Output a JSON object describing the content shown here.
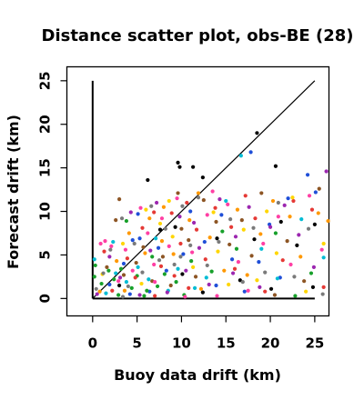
{
  "chart_data": {
    "type": "scatter",
    "title": "Distance scatter plot, obs-BE (28)",
    "xlabel": "Buoy data drift (km)",
    "ylabel": "Forecast drift (km)",
    "xlim": [
      -2.9,
      26.6
    ],
    "ylim": [
      -2.0,
      26.6
    ],
    "xticks": [
      0,
      5,
      10,
      15,
      20,
      25
    ],
    "yticks": [
      0,
      5,
      10,
      15,
      20,
      25
    ],
    "xtick_labels": [
      "0",
      "5",
      "10",
      "15",
      "20",
      "25"
    ],
    "ytick_labels": [
      "0",
      "5",
      "10",
      "15",
      "20",
      "25"
    ],
    "grid": false,
    "reference_line": {
      "from": [
        0,
        0
      ],
      "to": [
        25,
        25
      ],
      "color": "#000000"
    },
    "axis_lines": [
      {
        "from": [
          0,
          0
        ],
        "to": [
          0,
          25
        ],
        "color": "#000000"
      },
      {
        "from": [
          0,
          0
        ],
        "to": [
          25,
          0
        ],
        "color": "#000000"
      }
    ],
    "series": [
      {
        "color": "#000000",
        "points": [
          [
            6.2,
            13.6
          ],
          [
            9.6,
            15.6
          ],
          [
            9.8,
            15.1
          ],
          [
            11.3,
            15.1
          ],
          [
            12.4,
            13.9
          ],
          [
            20.6,
            15.2
          ],
          [
            18.5,
            19.0
          ],
          [
            7.6,
            7.9
          ],
          [
            14.0,
            6.9
          ],
          [
            16.6,
            2.1
          ],
          [
            18.2,
            6.8
          ],
          [
            21.2,
            8.8
          ],
          [
            23.0,
            6.1
          ],
          [
            25.0,
            8.5
          ],
          [
            24.8,
            1.3
          ],
          [
            12.4,
            0.7
          ],
          [
            10.1,
            2.8
          ],
          [
            3.0,
            1.5
          ],
          [
            9.3,
            8.2
          ],
          [
            20.1,
            1.1
          ]
        ]
      },
      {
        "color": "#1f4fd8",
        "points": [
          [
            1.9,
            1.6
          ],
          [
            4.5,
            6.7
          ],
          [
            5.3,
            6.9
          ],
          [
            5.1,
            9.7
          ],
          [
            7.4,
            5.8
          ],
          [
            8.3,
            3.2
          ],
          [
            11.0,
            10.0
          ],
          [
            12.6,
            6.5
          ],
          [
            14.5,
            9.6
          ],
          [
            15.7,
            4.5
          ],
          [
            17.1,
            0.8
          ],
          [
            18.7,
            4.2
          ],
          [
            19.9,
            8.5
          ],
          [
            22.0,
            11.5
          ],
          [
            24.2,
            14.2
          ],
          [
            25.1,
            12.2
          ],
          [
            21.1,
            2.4
          ],
          [
            17.8,
            16.8
          ],
          [
            13.9,
            1.5
          ],
          [
            4.2,
            0.5
          ],
          [
            6.4,
            0.8
          ],
          [
            10.2,
            5.1
          ],
          [
            3.5,
            4.0
          ]
        ]
      },
      {
        "color": "#00bcd4",
        "points": [
          [
            0.2,
            4.5
          ],
          [
            1.5,
            0.6
          ],
          [
            2.6,
            2.9
          ],
          [
            3.8,
            1.9
          ],
          [
            5.1,
            3.6
          ],
          [
            6.3,
            2.2
          ],
          [
            8.5,
            0.9
          ],
          [
            9.6,
            3.4
          ],
          [
            12.8,
            2.4
          ],
          [
            15.0,
            11.2
          ],
          [
            19.0,
            5.7
          ],
          [
            20.8,
            2.3
          ],
          [
            23.5,
            9.1
          ],
          [
            26.0,
            4.7
          ],
          [
            16.7,
            16.4
          ],
          [
            7.1,
            6.9
          ],
          [
            11.5,
            1.2
          ],
          [
            2.3,
            6.5
          ]
        ]
      },
      {
        "color": "#17a02a",
        "points": [
          [
            0.2,
            2.5
          ],
          [
            0.3,
            3.8
          ],
          [
            1.0,
            1.7
          ],
          [
            1.8,
            3.2
          ],
          [
            2.9,
            0.4
          ],
          [
            3.2,
            3.4
          ],
          [
            4.4,
            1.2
          ],
          [
            5.0,
            2.6
          ],
          [
            5.8,
            0.3
          ],
          [
            6.7,
            4.8
          ],
          [
            7.3,
            1.4
          ],
          [
            8.1,
            2.8
          ],
          [
            9.4,
            1.9
          ],
          [
            10.3,
            0.4
          ],
          [
            11.1,
            4.3
          ],
          [
            13.4,
            3.1
          ],
          [
            16.2,
            5.7
          ],
          [
            20.6,
            7.5
          ],
          [
            24.6,
            2.9
          ],
          [
            3.8,
            8.9
          ],
          [
            14.6,
            7.7
          ],
          [
            22.8,
            0.3
          ],
          [
            2.4,
            2.2
          ],
          [
            6.1,
            0.9
          ]
        ]
      },
      {
        "color": "#e53935",
        "points": [
          [
            1.3,
            5.4
          ],
          [
            2.2,
            0.9
          ],
          [
            3.9,
            4.6
          ],
          [
            5.6,
            8.1
          ],
          [
            6.9,
            9.9
          ],
          [
            7.7,
            3.7
          ],
          [
            8.9,
            9.8
          ],
          [
            9.9,
            6.3
          ],
          [
            10.6,
            11.0
          ],
          [
            11.7,
            7.9
          ],
          [
            12.7,
            4.5
          ],
          [
            13.8,
            10.4
          ],
          [
            15.6,
            8.2
          ],
          [
            17.2,
            11.8
          ],
          [
            18.3,
            9.2
          ],
          [
            19.4,
            0.8
          ],
          [
            21.4,
            4.4
          ],
          [
            22.6,
            11.2
          ],
          [
            24.7,
            10.2
          ],
          [
            26.0,
            1.3
          ],
          [
            4.8,
            2.4
          ],
          [
            7.0,
            0.3
          ],
          [
            10.8,
            1.2
          ],
          [
            16.0,
            3.4
          ],
          [
            9.2,
            2.6
          ]
        ]
      },
      {
        "color": "#ff9800",
        "points": [
          [
            0.8,
            0.8
          ],
          [
            2.7,
            4.3
          ],
          [
            4.1,
            7.5
          ],
          [
            5.9,
            5.2
          ],
          [
            6.4,
            9.2
          ],
          [
            8.0,
            10.5
          ],
          [
            9.1,
            5.1
          ],
          [
            10.9,
            9.0
          ],
          [
            12.2,
            1.1
          ],
          [
            13.2,
            7.0
          ],
          [
            14.8,
            3.2
          ],
          [
            16.3,
            10.2
          ],
          [
            17.4,
            2.7
          ],
          [
            18.9,
            7.4
          ],
          [
            20.3,
            11.2
          ],
          [
            22.2,
            9.4
          ],
          [
            23.4,
            4.8
          ],
          [
            25.4,
            9.8
          ],
          [
            26.5,
            8.9
          ],
          [
            3.6,
            0.9
          ],
          [
            7.8,
            6.6
          ],
          [
            11.9,
            12.1
          ]
        ]
      },
      {
        "color": "#ffd600",
        "points": [
          [
            1.1,
            2.8
          ],
          [
            3.4,
            6.3
          ],
          [
            5.5,
            1.7
          ],
          [
            6.0,
            10.2
          ],
          [
            7.6,
            8.6
          ],
          [
            9.0,
            7.1
          ],
          [
            11.3,
            3.6
          ],
          [
            13.6,
            9.9
          ],
          [
            15.3,
            1.6
          ],
          [
            17.0,
            7.9
          ],
          [
            18.5,
            2.1
          ],
          [
            20.7,
            5.2
          ],
          [
            22.5,
            11.6
          ],
          [
            24.0,
            0.8
          ],
          [
            26.0,
            6.3
          ],
          [
            8.6,
            11.2
          ],
          [
            14.1,
            5.4
          ],
          [
            19.6,
            10.0
          ]
        ]
      },
      {
        "color": "#8d5524",
        "points": [
          [
            1.6,
            3.6
          ],
          [
            3.0,
            11.4
          ],
          [
            3.5,
            2.7
          ],
          [
            4.9,
            4.1
          ],
          [
            5.7,
            5.9
          ],
          [
            6.7,
            2.0
          ],
          [
            7.9,
            4.8
          ],
          [
            8.8,
            1.5
          ],
          [
            10.0,
            8.0
          ],
          [
            10.8,
            6.7
          ],
          [
            11.6,
            2.5
          ],
          [
            12.5,
            11.3
          ],
          [
            13.9,
            8.8
          ],
          [
            15.4,
            6.2
          ],
          [
            16.8,
            9.0
          ],
          [
            17.9,
            4.9
          ],
          [
            19.0,
            12.1
          ],
          [
            20.5,
            0.4
          ],
          [
            21.9,
            6.6
          ],
          [
            23.8,
            2.0
          ],
          [
            2.6,
            9.0
          ],
          [
            9.6,
            12.1
          ],
          [
            25.5,
            12.6
          ]
        ]
      },
      {
        "color": "#9c27b0",
        "points": [
          [
            0.5,
            0.5
          ],
          [
            1.9,
            4.8
          ],
          [
            3.1,
            2.4
          ],
          [
            4.3,
            9.9
          ],
          [
            5.3,
            0.4
          ],
          [
            6.5,
            5.5
          ],
          [
            7.2,
            11.0
          ],
          [
            8.4,
            0.7
          ],
          [
            9.8,
            9.4
          ],
          [
            10.5,
            3.2
          ],
          [
            12.0,
            5.8
          ],
          [
            13.1,
            1.6
          ],
          [
            14.3,
            11.4
          ],
          [
            15.8,
            2.9
          ],
          [
            17.6,
            10.5
          ],
          [
            18.8,
            1.3
          ],
          [
            20.0,
            8.2
          ],
          [
            21.6,
            10.7
          ],
          [
            23.2,
            7.3
          ],
          [
            24.9,
            3.6
          ],
          [
            26.3,
            14.6
          ],
          [
            16.1,
            7.1
          ],
          [
            11.4,
            8.7
          ]
        ]
      },
      {
        "color": "#ff3fa4",
        "points": [
          [
            0.9,
            6.3
          ],
          [
            1.4,
            6.6
          ],
          [
            2.1,
            6.0
          ],
          [
            2.9,
            2.0
          ],
          [
            3.7,
            5.6
          ],
          [
            4.5,
            3.2
          ],
          [
            5.4,
            10.4
          ],
          [
            6.2,
            7.5
          ],
          [
            7.0,
            1.9
          ],
          [
            7.8,
            9.2
          ],
          [
            8.6,
            6.0
          ],
          [
            9.5,
            11.5
          ],
          [
            10.4,
            0.2
          ],
          [
            11.2,
            5.3
          ],
          [
            12.9,
            9.6
          ],
          [
            14.0,
            0.3
          ],
          [
            15.2,
            10.8
          ],
          [
            16.4,
            4.2
          ],
          [
            17.5,
            0.9
          ],
          [
            19.2,
            6.3
          ],
          [
            20.9,
            9.4
          ],
          [
            22.3,
            3.9
          ],
          [
            24.4,
            11.8
          ],
          [
            25.8,
            5.6
          ],
          [
            6.9,
            3.9
          ],
          [
            13.5,
            12.3
          ]
        ]
      },
      {
        "color": "#7a7a7a",
        "points": [
          [
            0.4,
            1.1
          ],
          [
            1.2,
            2.9
          ],
          [
            2.0,
            5.6
          ],
          [
            3.3,
            9.2
          ],
          [
            4.0,
            1.4
          ],
          [
            4.7,
            6.3
          ],
          [
            5.6,
            3.0
          ],
          [
            6.6,
            10.6
          ],
          [
            7.5,
            4.4
          ],
          [
            8.2,
            8.0
          ],
          [
            9.2,
            3.9
          ],
          [
            10.1,
            10.6
          ],
          [
            11.0,
            6.1
          ],
          [
            11.9,
            11.6
          ],
          [
            12.9,
            3.8
          ],
          [
            14.2,
            6.5
          ],
          [
            15.5,
            9.1
          ],
          [
            16.9,
            1.9
          ],
          [
            18.1,
            8.1
          ],
          [
            19.4,
            3.0
          ],
          [
            20.9,
            11.0
          ],
          [
            22.7,
            2.5
          ],
          [
            24.3,
            8.0
          ],
          [
            25.9,
            0.5
          ],
          [
            9.9,
            4.8
          ],
          [
            3.4,
            0.2
          ]
        ]
      }
    ]
  }
}
